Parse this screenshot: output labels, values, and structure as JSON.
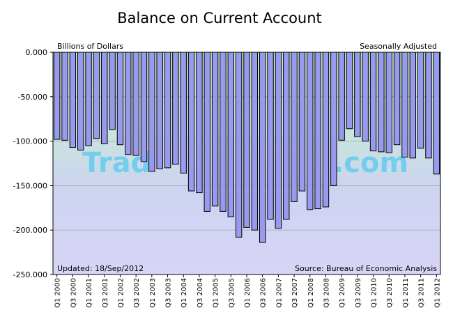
{
  "chart_data": {
    "type": "bar",
    "title": "Balance on Current Account",
    "unit_note": "Billions of Dollars",
    "adjustment_note": "Seasonally Adjusted",
    "updated_note": "Updated: 18/Sep/2012",
    "source_note": "Source: Bureau of Economic Analysis",
    "watermark": "Trad",
    "watermark_tail": ".com",
    "ylim": [
      -250,
      0
    ],
    "yticks": [
      "0.000",
      "-50.000",
      "-100.000",
      "-150.000",
      "-200.000",
      "-250.000"
    ],
    "grid": true,
    "bar_color": "#9999ee",
    "categories": [
      "Q1 2000",
      "Q2 2000",
      "Q3 2000",
      "Q4 2000",
      "Q1 2001",
      "Q2 2001",
      "Q3 2001",
      "Q4 2001",
      "Q1 2002",
      "Q2 2002",
      "Q3 2002",
      "Q4 2002",
      "Q1 2003",
      "Q2 2003",
      "Q3 2003",
      "Q4 2003",
      "Q1 2004",
      "Q2 2004",
      "Q3 2004",
      "Q4 2004",
      "Q1 2005",
      "Q2 2005",
      "Q3 2005",
      "Q4 2005",
      "Q1 2006",
      "Q2 2006",
      "Q3 2006",
      "Q4 2006",
      "Q1 2007",
      "Q2 2007",
      "Q3 2007",
      "Q4 2007",
      "Q1 2008",
      "Q2 2008",
      "Q3 2008",
      "Q4 2008",
      "Q1 2009",
      "Q2 2009",
      "Q3 2009",
      "Q4 2009",
      "Q1 2010",
      "Q2 2010",
      "Q3 2010",
      "Q4 2010",
      "Q1 2011",
      "Q2 2011",
      "Q3 2011",
      "Q4 2011",
      "Q1 2012"
    ],
    "xtick_labels": [
      "Q1 2000",
      "Q3 2000",
      "Q1 2001",
      "Q3 2001",
      "Q1 2002",
      "Q3 2002",
      "Q1 2003",
      "Q3 2003",
      "Q1 2004",
      "Q3 2004",
      "Q1 2005",
      "Q3 2005",
      "Q1 2006",
      "Q3 2006",
      "Q1 2007",
      "Q3 2007",
      "Q1 2008",
      "Q3 2008",
      "Q1 2009",
      "Q3 2009",
      "Q1 2010",
      "Q3 2010",
      "Q1 2011",
      "Q3 2011",
      "Q1 2012"
    ],
    "values": [
      -98,
      -99,
      -107,
      -110,
      -105,
      -97,
      -103,
      -87,
      -104,
      -115,
      -116,
      -123,
      -134,
      -131,
      -130,
      -126,
      -136,
      -156,
      -158,
      -179,
      -173,
      -179,
      -185,
      -208,
      -197,
      -200,
      -214,
      -188,
      -198,
      -188,
      -168,
      -156,
      -177,
      -176,
      -174,
      -150,
      -99,
      -86,
      -95,
      -100,
      -111,
      -112,
      -113,
      -104,
      -118,
      -119,
      -108,
      -119,
      -137
    ]
  }
}
